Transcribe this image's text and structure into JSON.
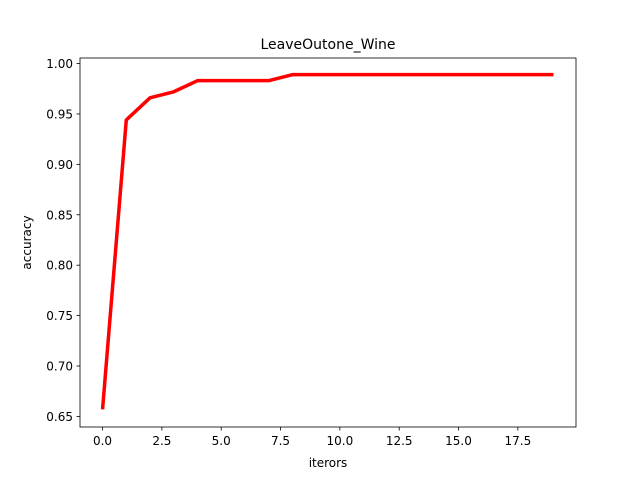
{
  "chart_data": {
    "type": "line",
    "title": "LeaveOutone_Wine",
    "xlabel": "iterors",
    "ylabel": "accuracy",
    "xlim": [
      -0.95,
      19.95
    ],
    "ylim": [
      0.6395,
      1.0055
    ],
    "xticks": [
      0.0,
      2.5,
      5.0,
      7.5,
      10.0,
      12.5,
      15.0,
      17.5
    ],
    "xtick_labels": [
      "0.0",
      "2.5",
      "5.0",
      "7.5",
      "10.0",
      "12.5",
      "15.0",
      "17.5"
    ],
    "yticks": [
      0.65,
      0.7,
      0.75,
      0.8,
      0.85,
      0.9,
      0.95,
      1.0
    ],
    "ytick_labels": [
      "0.65",
      "0.70",
      "0.75",
      "0.80",
      "0.85",
      "0.90",
      "0.95",
      "1.00"
    ],
    "grid": false,
    "series": [
      {
        "color": "#ff0000",
        "x": [
          0,
          1,
          2,
          3,
          4,
          5,
          6,
          7,
          8,
          9,
          10,
          11,
          12,
          13,
          14,
          15,
          16,
          17,
          18,
          19
        ],
        "y": [
          0.657,
          0.944,
          0.966,
          0.972,
          0.983,
          0.983,
          0.983,
          0.983,
          0.989,
          0.989,
          0.989,
          0.989,
          0.989,
          0.989,
          0.989,
          0.989,
          0.989,
          0.989,
          0.989,
          0.989
        ]
      }
    ]
  }
}
